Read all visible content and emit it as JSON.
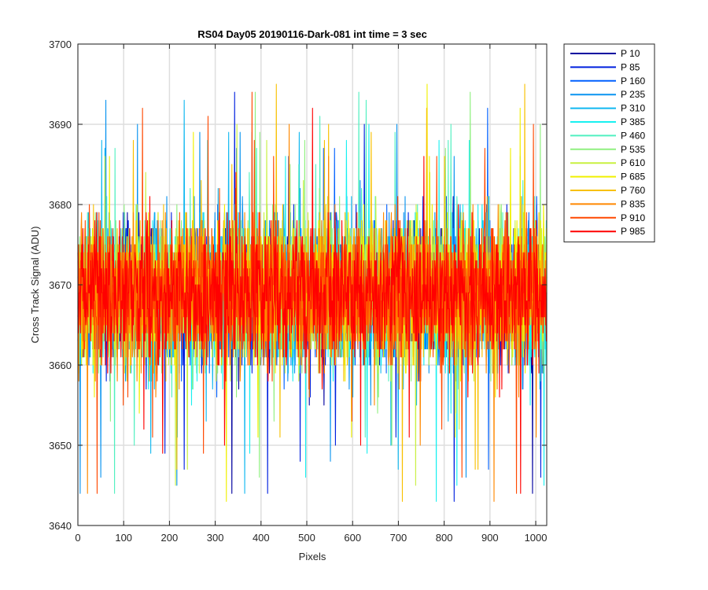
{
  "chart_data": {
    "type": "line",
    "title": "RS04 Day05 20190116-Dark-081 int time = 3 sec",
    "xlabel": "Pixels",
    "ylabel": "Cross Track Signal (ADU)",
    "xlim": [
      0,
      1024
    ],
    "ylim": [
      3640,
      3700
    ],
    "xticks": [
      0,
      100,
      200,
      300,
      400,
      500,
      600,
      700,
      800,
      900,
      1000
    ],
    "yticks": [
      3640,
      3650,
      3660,
      3670,
      3680,
      3690,
      3700
    ],
    "grid": true,
    "legend_position": "outside-right-top",
    "noise": {
      "mean": 3669,
      "n_points": 1024,
      "core_range": [
        3655,
        3683
      ],
      "extreme_range": [
        3641,
        3696
      ]
    },
    "series": [
      {
        "name": "P 10",
        "color": "#00009f"
      },
      {
        "name": "P 85",
        "color": "#0020df"
      },
      {
        "name": "P 160",
        "color": "#0060ff"
      },
      {
        "name": "P 235",
        "color": "#0a94f0"
      },
      {
        "name": "P 310",
        "color": "#10b8f0"
      },
      {
        "name": "P 385",
        "color": "#18f0f0"
      },
      {
        "name": "P 460",
        "color": "#50f0c0"
      },
      {
        "name": "P 535",
        "color": "#90f080"
      },
      {
        "name": "P 610",
        "color": "#c8f040"
      },
      {
        "name": "P 685",
        "color": "#f0f000"
      },
      {
        "name": "P 760",
        "color": "#f8c000"
      },
      {
        "name": "P 835",
        "color": "#ff8800"
      },
      {
        "name": "P 910",
        "color": "#ff4800"
      },
      {
        "name": "P 985",
        "color": "#ff0000"
      }
    ]
  }
}
